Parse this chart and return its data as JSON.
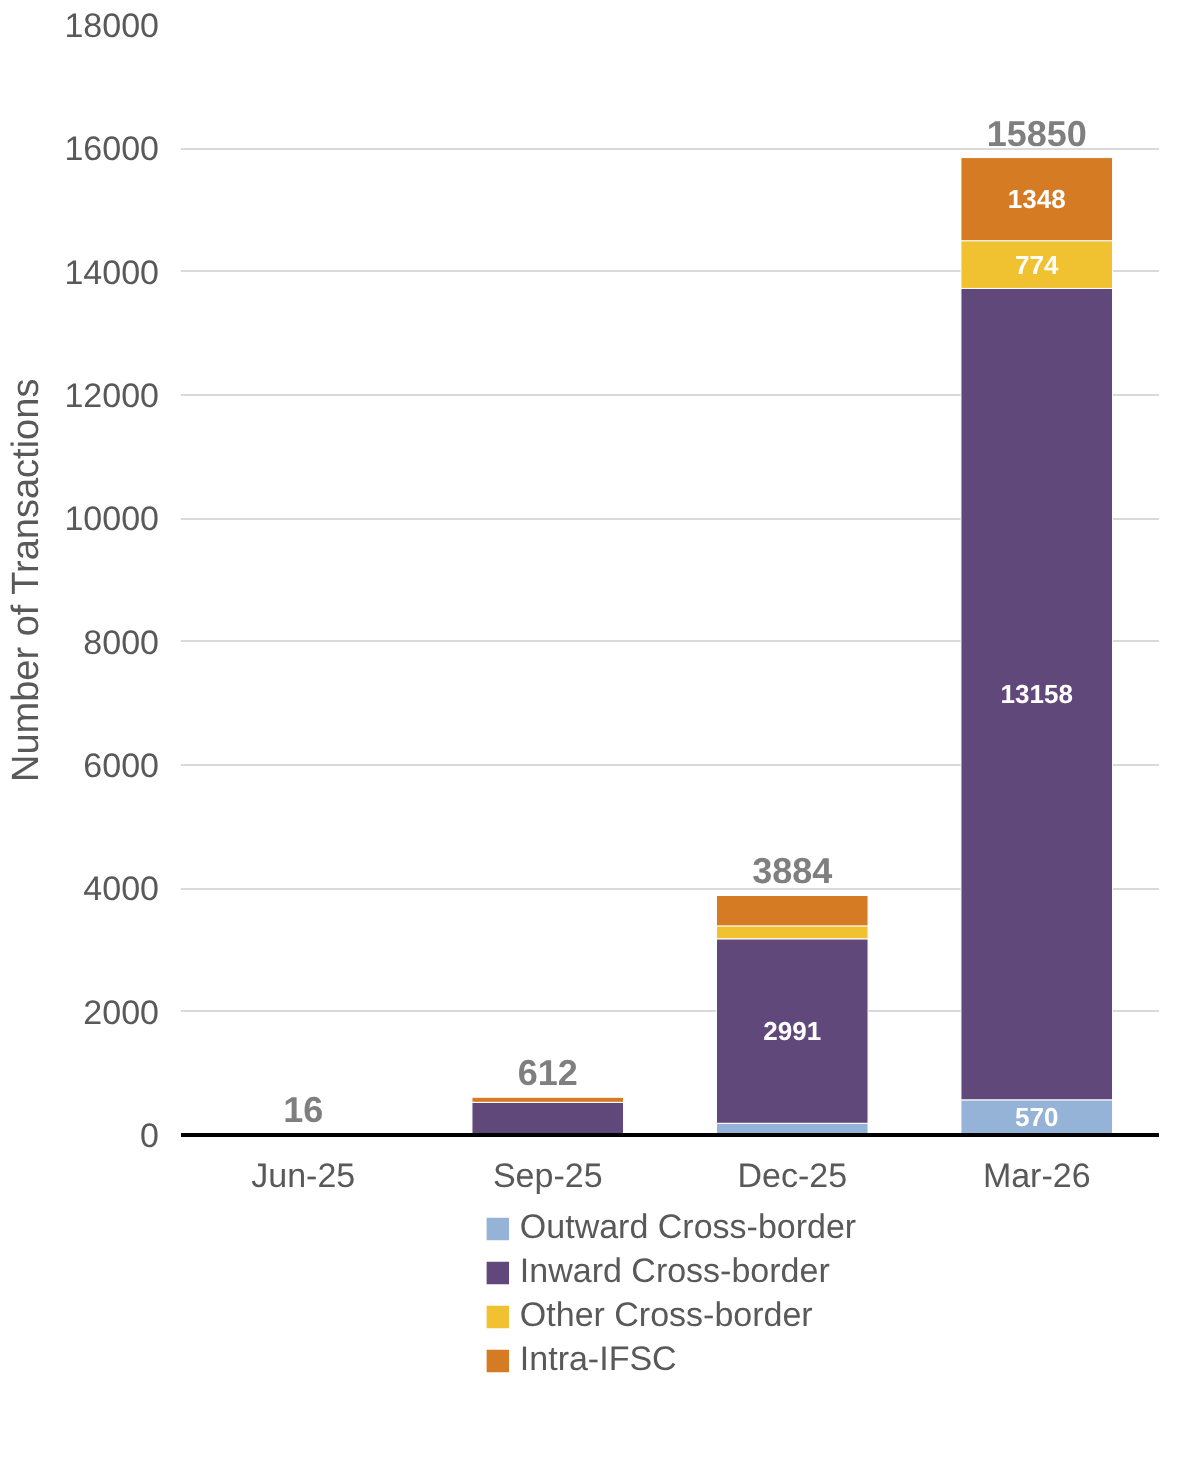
{
  "chart_data": {
    "type": "bar",
    "stacked": true,
    "ylabel": "Number of Transactions",
    "categories": [
      "Jun-25",
      "Sep-25",
      "Dec-25",
      "Mar-26"
    ],
    "series": [
      {
        "name": "Outward Cross-border",
        "color": "#95b3d7",
        "values": [
          null,
          null,
          190,
          570
        ],
        "value_labels": [
          null,
          null,
          null,
          "570"
        ]
      },
      {
        "name": "Inward Cross-border",
        "color": "#60497a",
        "values": [
          16,
          530,
          2991,
          13158
        ],
        "value_labels": [
          null,
          null,
          "2991",
          "13158"
        ]
      },
      {
        "name": "Other Cross-border",
        "color": "#f0c232",
        "values": [
          null,
          null,
          210,
          774
        ],
        "value_labels": [
          null,
          null,
          null,
          "774"
        ]
      },
      {
        "name": "Intra-IFSC",
        "color": "#d47b24",
        "values": [
          null,
          82,
          493,
          1348
        ],
        "value_labels": [
          null,
          null,
          null,
          "1348"
        ]
      }
    ],
    "totals": [
      "16",
      "612",
      "3884",
      "15850"
    ],
    "ylim": [
      0,
      18000
    ],
    "yticks": [
      0,
      2000,
      4000,
      6000,
      8000,
      10000,
      12000,
      14000,
      16000,
      18000
    ],
    "grid": "y",
    "legend": "bottom"
  }
}
